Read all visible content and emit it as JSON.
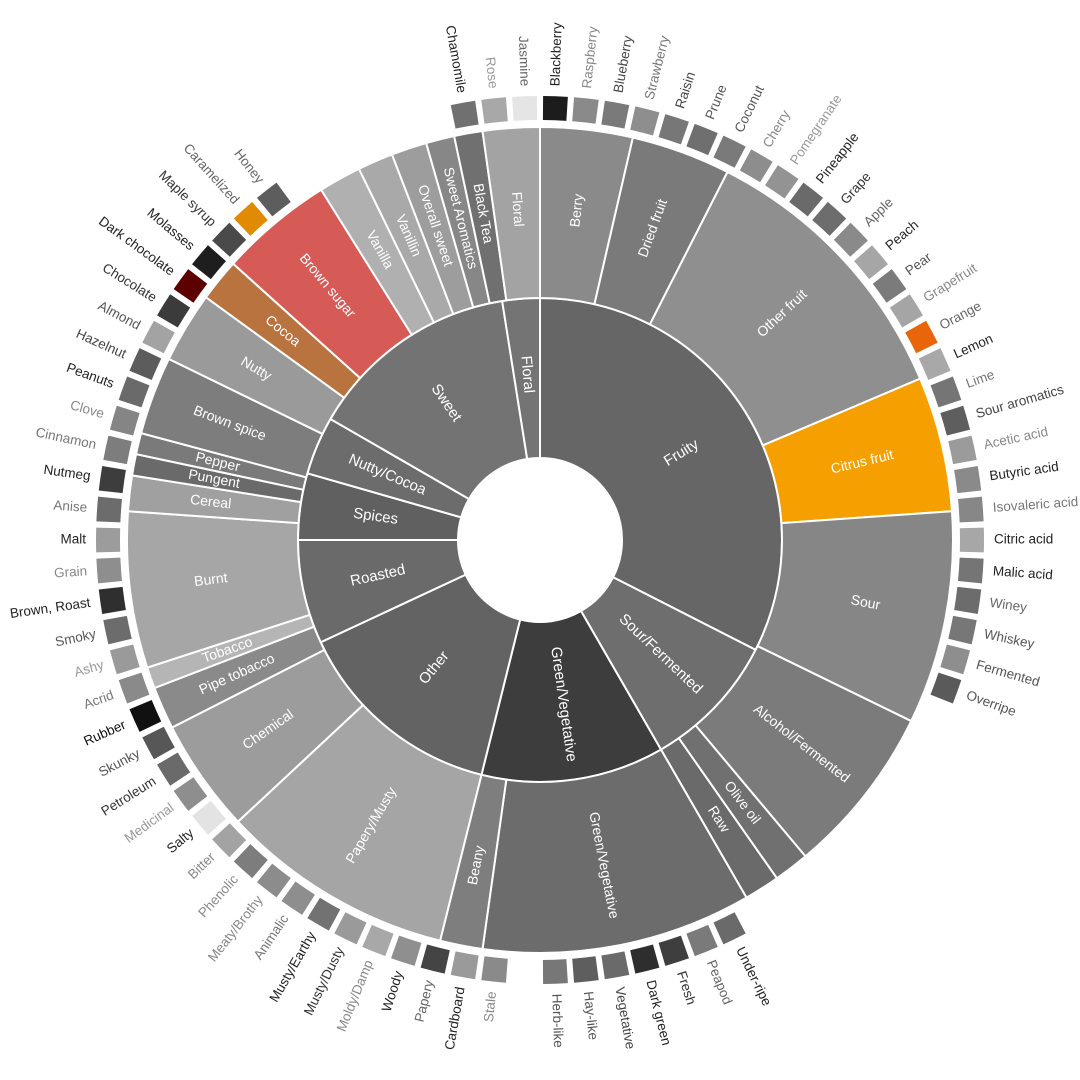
{
  "wheel": {
    "center": [
      "Fruity",
      "Sour/Fermented",
      "Green/Vegetative",
      "Other",
      "Roasted",
      "Spices",
      "Nutty/Cocoa",
      "Sweet",
      "Floral"
    ],
    "inner": [
      "Berry",
      "Dried fruit",
      "Other fruit",
      "Citrus fruit",
      "Sour",
      "Alcohol/Fermented",
      "Olive oil",
      "Raw",
      "Green/Vegetative",
      "Beany",
      "Papery/Musty",
      "Chemical",
      "Pipe tobacco",
      "Tobacco",
      "Burnt",
      "Cereal",
      "Pungent",
      "Pepper",
      "Brown spice",
      "Nutty",
      "Cocoa",
      "Brown sugar",
      "Vanilla",
      "Vanillin",
      "Overall sweet",
      "Sweet Aromatics",
      "Black Tea",
      "Floral"
    ],
    "outer": [
      "Blackberry",
      "Raspberry",
      "Blueberry",
      "Strawberry",
      "Raisin",
      "Prune",
      "Coconut",
      "Cherry",
      "Pomegranate",
      "Pineapple",
      "Grape",
      "Apple",
      "Peach",
      "Pear",
      "Grapefruit",
      "Orange",
      "Lemon",
      "Lime",
      "Sour aromatics",
      "Acetic acid",
      "Butyric acid",
      "Isovaleric acid",
      "Citric acid",
      "Malic acid",
      "Winey",
      "Whiskey",
      "Fermented",
      "Overripe",
      "Under-ripe",
      "Peapod",
      "Fresh",
      "Dark green",
      "Vegetative",
      "Hay-like",
      "Herb-like",
      "Stale",
      "Cardboard",
      "Papery",
      "Woody",
      "Moldy/Damp",
      "Musty/Dusty",
      "Musty/Earthy",
      "Animalic",
      "Meaty/Brothy",
      "Phenolic",
      "Bitter",
      "Salty",
      "Medicinal",
      "Petroleum",
      "Skunky",
      "Rubber",
      "Acrid",
      "Ashy",
      "Smoky",
      "Brown, Roast",
      "Grain",
      "Malt",
      "Anise",
      "Nutmeg",
      "Cinnamon",
      "Clove",
      "Peanuts",
      "Hazelnut",
      "Almond",
      "Chocolate",
      "Dark chocolate",
      "Molasses",
      "Maple syrup",
      "Caramelized",
      "Honey",
      "Chamomile",
      "Rose",
      "Jasmine"
    ]
  },
  "colors": {
    "accent_orange": "#f5a000",
    "accent_red": "#d65a55",
    "accent_cocoa": "#b8733f",
    "accent_dark_orange": "#e8650a",
    "accent_caramel": "#e08a05",
    "accent_maroon": "#5c0000"
  }
}
